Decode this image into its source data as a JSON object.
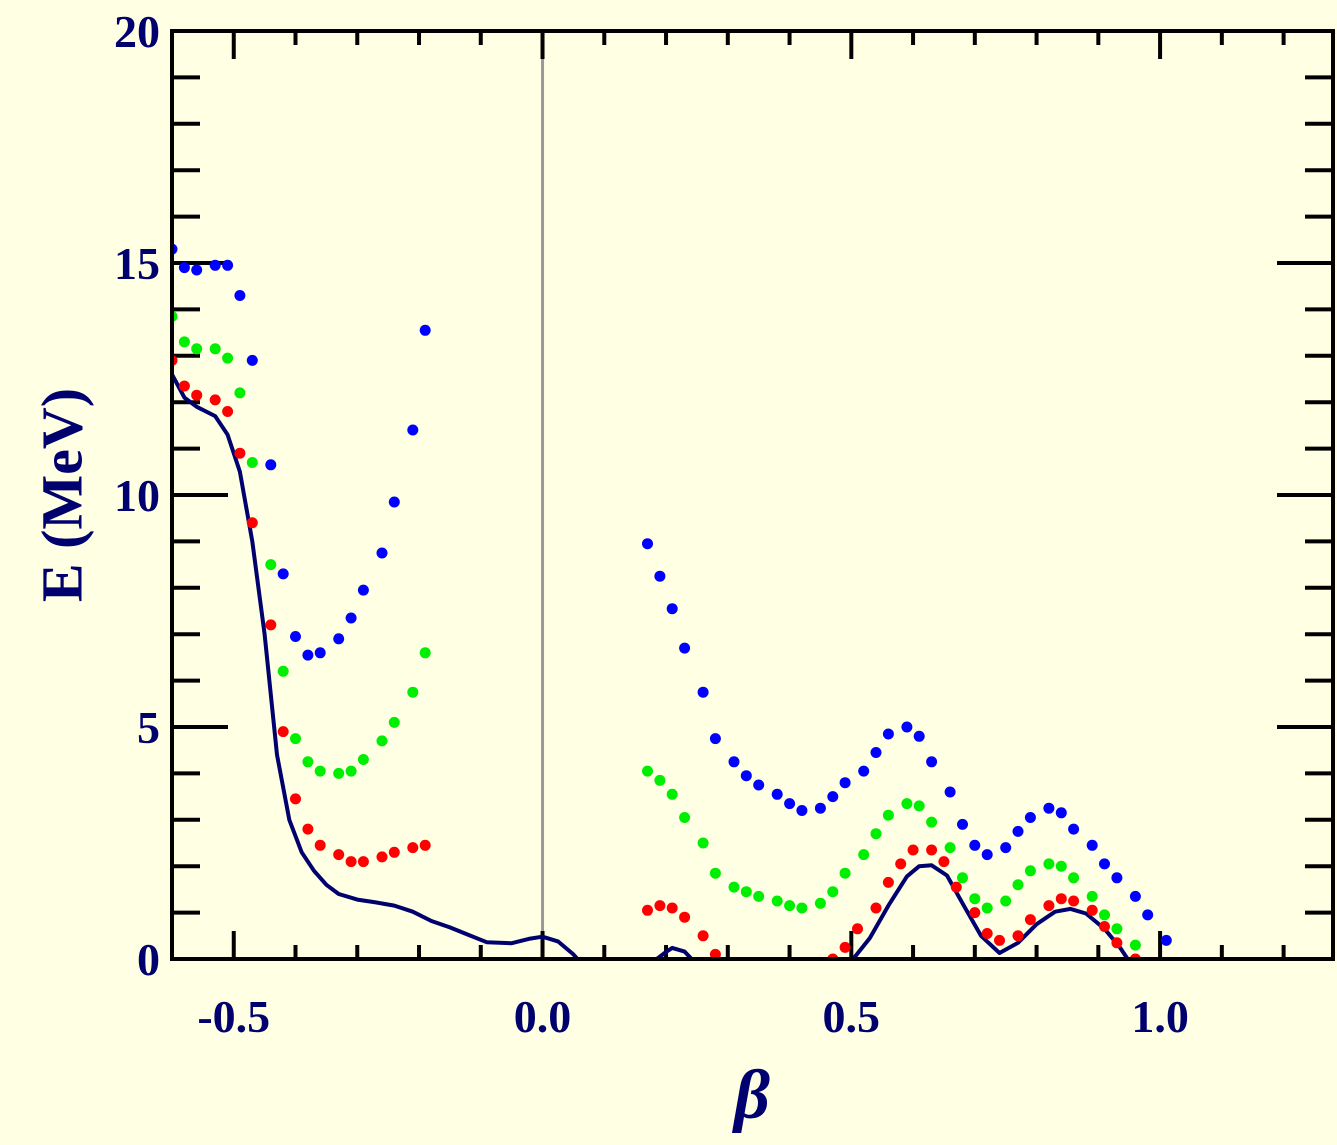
{
  "chart_data": {
    "type": "scatter",
    "xlabel": "β",
    "ylabel": "E (MeV)",
    "xlim": [
      -0.6,
      1.28
    ],
    "ylim": [
      0,
      20
    ],
    "x_ticks": [
      "-0.5",
      "0.0",
      "0.5",
      "1.0"
    ],
    "y_ticks": [
      "0",
      "5",
      "10",
      "15",
      "20"
    ],
    "grid": false,
    "zero_line": true,
    "colors": {
      "background": "#ffffe4",
      "axis": "#000000",
      "text": "#00006e",
      "curve": "#00006e",
      "zero_line": "#999999"
    },
    "series": [
      {
        "kind": "line",
        "color": "#00006e",
        "points": [
          [
            -0.6,
            12.6
          ],
          [
            -0.58,
            12.1
          ],
          [
            -0.56,
            11.9
          ],
          [
            -0.53,
            11.7
          ],
          [
            -0.51,
            11.3
          ],
          [
            -0.49,
            10.5
          ],
          [
            -0.47,
            9.0
          ],
          [
            -0.45,
            7.0
          ],
          [
            -0.43,
            4.4
          ],
          [
            -0.41,
            3.0
          ],
          [
            -0.39,
            2.3
          ],
          [
            -0.37,
            1.9
          ],
          [
            -0.35,
            1.6
          ],
          [
            -0.33,
            1.4
          ],
          [
            -0.3,
            1.28
          ],
          [
            -0.27,
            1.22
          ],
          [
            -0.24,
            1.15
          ],
          [
            -0.21,
            1.02
          ],
          [
            -0.18,
            0.82
          ],
          [
            -0.15,
            0.68
          ],
          [
            -0.12,
            0.52
          ],
          [
            -0.09,
            0.36
          ],
          [
            -0.05,
            0.34
          ],
          [
            -0.02,
            0.44
          ],
          [
            0.0,
            0.48
          ],
          [
            0.025,
            0.38
          ],
          [
            0.05,
            0.1
          ],
          [
            0.06,
            -0.05
          ]
        ]
      },
      {
        "kind": "line",
        "color": "#00006e",
        "points": [
          [
            0.18,
            -0.05
          ],
          [
            0.2,
            0.15
          ],
          [
            0.21,
            0.24
          ],
          [
            0.23,
            0.16
          ],
          [
            0.245,
            -0.05
          ]
        ]
      },
      {
        "kind": "line",
        "color": "#00006e",
        "points": [
          [
            0.5,
            -0.05
          ],
          [
            0.53,
            0.45
          ],
          [
            0.56,
            1.15
          ],
          [
            0.59,
            1.78
          ],
          [
            0.61,
            2.0
          ],
          [
            0.63,
            2.02
          ],
          [
            0.655,
            1.8
          ],
          [
            0.68,
            1.2
          ],
          [
            0.71,
            0.5
          ],
          [
            0.74,
            0.13
          ],
          [
            0.77,
            0.35
          ],
          [
            0.8,
            0.75
          ],
          [
            0.83,
            1.02
          ],
          [
            0.855,
            1.08
          ],
          [
            0.88,
            0.98
          ],
          [
            0.91,
            0.65
          ],
          [
            0.935,
            0.25
          ],
          [
            0.95,
            -0.05
          ]
        ]
      },
      {
        "kind": "dots",
        "color": "#ff0000",
        "points": [
          [
            -0.6,
            12.9
          ],
          [
            -0.58,
            12.35
          ],
          [
            -0.56,
            12.15
          ],
          [
            -0.53,
            12.05
          ],
          [
            -0.51,
            11.8
          ],
          [
            -0.49,
            10.9
          ],
          [
            -0.47,
            9.4
          ],
          [
            -0.44,
            7.2
          ],
          [
            -0.42,
            4.9
          ],
          [
            -0.4,
            3.45
          ],
          [
            -0.38,
            2.8
          ],
          [
            -0.36,
            2.45
          ],
          [
            -0.33,
            2.25
          ],
          [
            -0.31,
            2.1
          ],
          [
            -0.29,
            2.1
          ],
          [
            -0.26,
            2.2
          ],
          [
            -0.24,
            2.3
          ],
          [
            -0.21,
            2.4
          ],
          [
            -0.19,
            2.45
          ],
          [
            0.17,
            1.05
          ],
          [
            0.19,
            1.15
          ],
          [
            0.21,
            1.1
          ],
          [
            0.23,
            0.9
          ],
          [
            0.26,
            0.5
          ],
          [
            0.28,
            0.1
          ],
          [
            0.47,
            0.0
          ],
          [
            0.49,
            0.25
          ],
          [
            0.51,
            0.65
          ],
          [
            0.54,
            1.1
          ],
          [
            0.56,
            1.65
          ],
          [
            0.58,
            2.05
          ],
          [
            0.6,
            2.35
          ],
          [
            0.63,
            2.35
          ],
          [
            0.65,
            2.1
          ],
          [
            0.67,
            1.55
          ],
          [
            0.7,
            1.0
          ],
          [
            0.72,
            0.55
          ],
          [
            0.74,
            0.4
          ],
          [
            0.77,
            0.5
          ],
          [
            0.79,
            0.85
          ],
          [
            0.82,
            1.15
          ],
          [
            0.84,
            1.3
          ],
          [
            0.86,
            1.25
          ],
          [
            0.89,
            1.05
          ],
          [
            0.91,
            0.7
          ],
          [
            0.93,
            0.35
          ],
          [
            0.96,
            0.0
          ]
        ]
      },
      {
        "kind": "dots",
        "color": "#00ee00",
        "points": [
          [
            -0.6,
            13.85
          ],
          [
            -0.58,
            13.3
          ],
          [
            -0.56,
            13.15
          ],
          [
            -0.53,
            13.15
          ],
          [
            -0.51,
            12.95
          ],
          [
            -0.49,
            12.2
          ],
          [
            -0.47,
            10.7
          ],
          [
            -0.44,
            8.5
          ],
          [
            -0.42,
            6.2
          ],
          [
            -0.4,
            4.75
          ],
          [
            -0.38,
            4.25
          ],
          [
            -0.36,
            4.05
          ],
          [
            -0.33,
            4.0
          ],
          [
            -0.31,
            4.05
          ],
          [
            -0.29,
            4.3
          ],
          [
            -0.26,
            4.7
          ],
          [
            -0.24,
            5.1
          ],
          [
            -0.21,
            5.75
          ],
          [
            -0.19,
            6.6
          ],
          [
            0.17,
            4.05
          ],
          [
            0.19,
            3.85
          ],
          [
            0.21,
            3.55
          ],
          [
            0.23,
            3.05
          ],
          [
            0.26,
            2.5
          ],
          [
            0.28,
            1.85
          ],
          [
            0.31,
            1.55
          ],
          [
            0.33,
            1.45
          ],
          [
            0.35,
            1.35
          ],
          [
            0.38,
            1.25
          ],
          [
            0.4,
            1.15
          ],
          [
            0.42,
            1.1
          ],
          [
            0.45,
            1.2
          ],
          [
            0.47,
            1.45
          ],
          [
            0.49,
            1.85
          ],
          [
            0.52,
            2.25
          ],
          [
            0.54,
            2.7
          ],
          [
            0.56,
            3.1
          ],
          [
            0.59,
            3.35
          ],
          [
            0.61,
            3.3
          ],
          [
            0.63,
            2.95
          ],
          [
            0.66,
            2.4
          ],
          [
            0.68,
            1.75
          ],
          [
            0.7,
            1.3
          ],
          [
            0.72,
            1.1
          ],
          [
            0.75,
            1.25
          ],
          [
            0.77,
            1.6
          ],
          [
            0.79,
            1.9
          ],
          [
            0.82,
            2.05
          ],
          [
            0.84,
            2.0
          ],
          [
            0.86,
            1.75
          ],
          [
            0.89,
            1.35
          ],
          [
            0.91,
            0.95
          ],
          [
            0.93,
            0.65
          ],
          [
            0.96,
            0.3
          ]
        ]
      },
      {
        "kind": "dots",
        "color": "#0000ff",
        "points": [
          [
            -0.6,
            15.3
          ],
          [
            -0.58,
            14.9
          ],
          [
            -0.56,
            14.85
          ],
          [
            -0.53,
            14.95
          ],
          [
            -0.51,
            14.95
          ],
          [
            -0.49,
            14.3
          ],
          [
            -0.47,
            12.9
          ],
          [
            -0.44,
            10.65
          ],
          [
            -0.42,
            8.3
          ],
          [
            -0.4,
            6.95
          ],
          [
            -0.38,
            6.55
          ],
          [
            -0.36,
            6.6
          ],
          [
            -0.33,
            6.9
          ],
          [
            -0.31,
            7.35
          ],
          [
            -0.29,
            7.95
          ],
          [
            -0.26,
            8.75
          ],
          [
            -0.24,
            9.85
          ],
          [
            -0.21,
            11.4
          ],
          [
            -0.19,
            13.55
          ],
          [
            0.17,
            8.95
          ],
          [
            0.19,
            8.25
          ],
          [
            0.21,
            7.55
          ],
          [
            0.23,
            6.7
          ],
          [
            0.26,
            5.75
          ],
          [
            0.28,
            4.75
          ],
          [
            0.31,
            4.25
          ],
          [
            0.33,
            3.95
          ],
          [
            0.35,
            3.75
          ],
          [
            0.38,
            3.55
          ],
          [
            0.4,
            3.35
          ],
          [
            0.42,
            3.2
          ],
          [
            0.45,
            3.25
          ],
          [
            0.47,
            3.5
          ],
          [
            0.49,
            3.8
          ],
          [
            0.52,
            4.05
          ],
          [
            0.54,
            4.45
          ],
          [
            0.56,
            4.85
          ],
          [
            0.59,
            5.0
          ],
          [
            0.61,
            4.8
          ],
          [
            0.63,
            4.25
          ],
          [
            0.66,
            3.6
          ],
          [
            0.68,
            2.9
          ],
          [
            0.7,
            2.45
          ],
          [
            0.72,
            2.25
          ],
          [
            0.75,
            2.4
          ],
          [
            0.77,
            2.75
          ],
          [
            0.79,
            3.05
          ],
          [
            0.82,
            3.25
          ],
          [
            0.84,
            3.15
          ],
          [
            0.86,
            2.8
          ],
          [
            0.89,
            2.45
          ],
          [
            0.91,
            2.05
          ],
          [
            0.93,
            1.75
          ],
          [
            0.96,
            1.35
          ],
          [
            0.98,
            0.95
          ],
          [
            1.01,
            0.4
          ]
        ]
      }
    ]
  }
}
